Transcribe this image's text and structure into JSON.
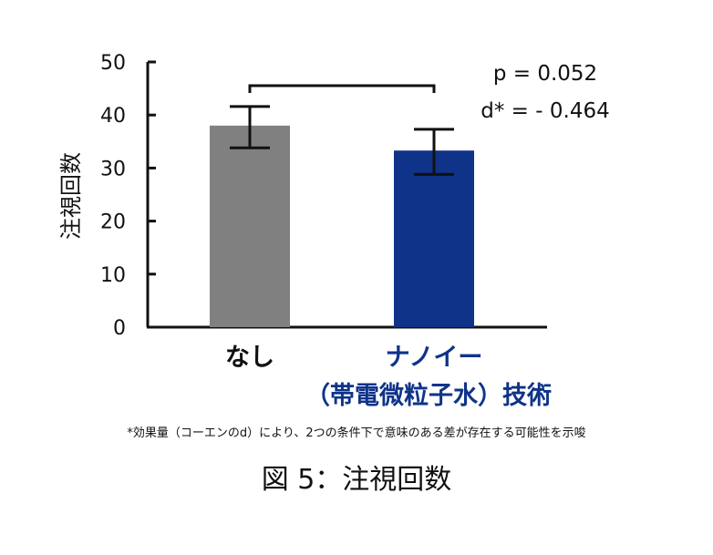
{
  "chart_data": {
    "type": "bar",
    "categories": [
      "なし",
      "ナノイー"
    ],
    "category_sublabels": [
      "",
      "（帯電微粒子水）技術"
    ],
    "values": [
      38,
      33.3
    ],
    "error_low": [
      33.8,
      28.8
    ],
    "error_high": [
      41.6,
      37.3
    ],
    "ylabel": "注視回数",
    "ylim": [
      0,
      50
    ],
    "yticks": [
      "0",
      "10",
      "20",
      "30",
      "40",
      "50"
    ],
    "colors": [
      "#808080",
      "#0f3389"
    ],
    "label_colors": [
      "#111111",
      "#0f3389"
    ],
    "annotation": {
      "p_text": "p = 0.052",
      "d_text": "d* = - 0.464"
    },
    "footnote": "*効果量（コーエンのd）により、2つの条件下で意味のある差が存在する可能性を示唆",
    "caption": "図 5：注視回数",
    "grid": false
  }
}
